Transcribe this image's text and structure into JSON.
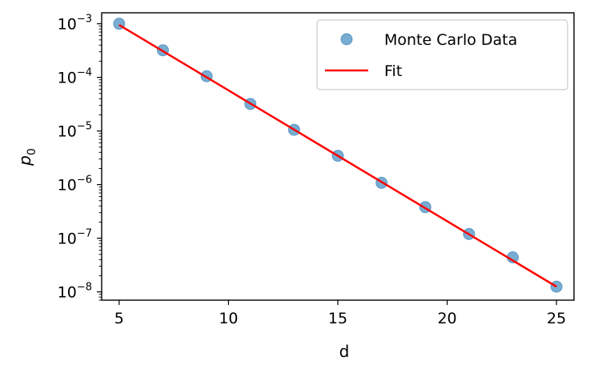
{
  "chart_data": {
    "type": "scatter",
    "title": "",
    "xlabel": "d",
    "ylabel": "p",
    "ylabel_subscript": "0",
    "xlim": [
      4.2,
      25.8
    ],
    "ylim": [
      7e-09,
      0.0016
    ],
    "yscale": "log",
    "xticks": [
      5,
      10,
      15,
      20,
      25
    ],
    "xtick_labels": [
      "5",
      "10",
      "15",
      "20",
      "25"
    ],
    "ytick_exponents": [
      -8,
      -7,
      -6,
      -5,
      -4,
      -3
    ],
    "ytick_labels": [
      "10",
      "10",
      "10",
      "10",
      "10",
      "10"
    ],
    "ytick_sup": [
      "−8",
      "−7",
      "−6",
      "−5",
      "−4",
      "−3"
    ],
    "grid": false,
    "legend_position": "top-right",
    "series": [
      {
        "name": "Monte Carlo Data",
        "kind": "scatter",
        "color": "#1f77b4",
        "x": [
          5,
          7,
          9,
          11,
          13,
          15,
          17,
          19,
          21,
          23,
          25
        ],
        "y": [
          0.001,
          0.00032,
          0.000105,
          3.2e-05,
          1.05e-05,
          3.45e-06,
          1.08e-06,
          3.8e-07,
          1.2e-07,
          4.4e-08,
          1.25e-08
        ]
      },
      {
        "name": "Fit",
        "kind": "line",
        "color": "#ff0000",
        "x": [
          5,
          25
        ],
        "y": [
          0.00095,
          1.25e-08
        ]
      }
    ]
  }
}
